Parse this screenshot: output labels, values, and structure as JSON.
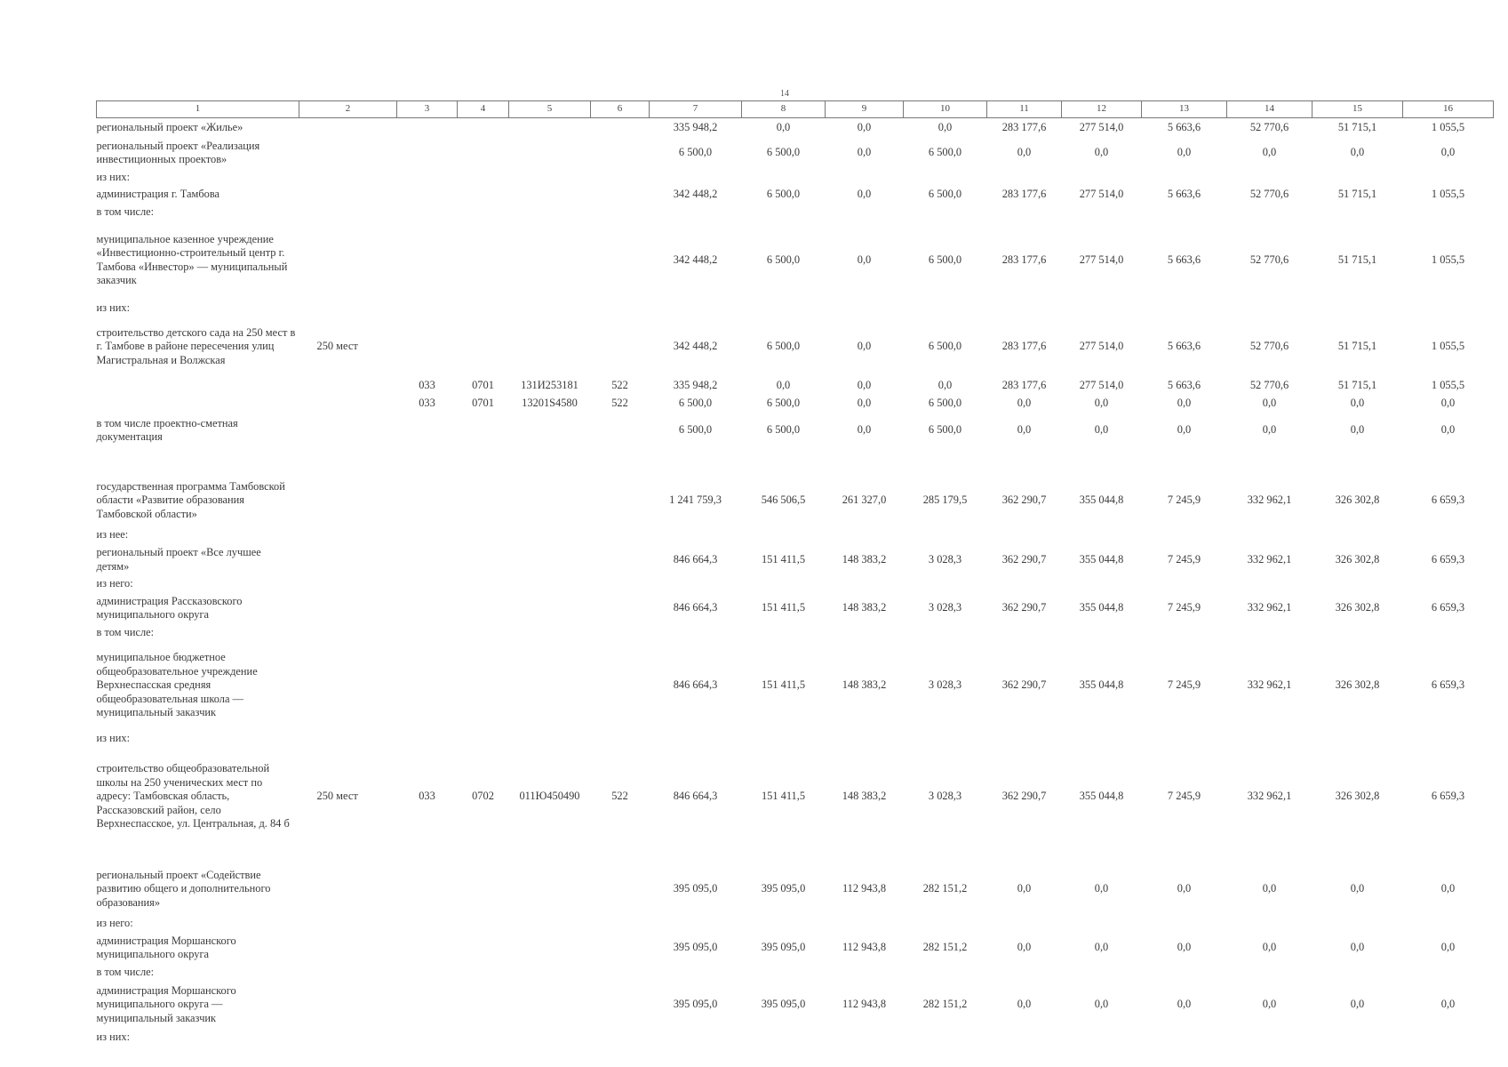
{
  "page_number": "14",
  "columns": [
    "1",
    "2",
    "3",
    "4",
    "5",
    "6",
    "7",
    "8",
    "9",
    "10",
    "11",
    "12",
    "13",
    "14",
    "15",
    "16"
  ],
  "rows": [
    {
      "h": 22,
      "name": "региональный проект «Жилье»",
      "values": [
        "335 948,2",
        "0,0",
        "0,0",
        "0,0",
        "283 177,6",
        "277 514,0",
        "5 663,6",
        "52 770,6",
        "51 715,1",
        "1 055,5"
      ]
    },
    {
      "h": 34,
      "name": "региональный проект «Реализация инвестиционных проектов»",
      "values": [
        "6 500,0",
        "6 500,0",
        "0,0",
        "6 500,0",
        "0,0",
        "0,0",
        "0,0",
        "0,0",
        "0,0",
        "0,0"
      ]
    },
    {
      "h": 18,
      "name": "из них:"
    },
    {
      "h": 20,
      "name": "администрация г. Тамбова",
      "values": [
        "342 448,2",
        "6 500,0",
        "0,0",
        "6 500,0",
        "283 177,6",
        "277 514,0",
        "5 663,6",
        "52 770,6",
        "51 715,1",
        "1 055,5"
      ]
    },
    {
      "h": 18,
      "name": "в том числе:"
    },
    {
      "h": 88,
      "name": "муниципальное казенное учреждение «Инвестиционно-строительный центр г. Тамбова «Инвестор» — муниципальный заказчик",
      "values": [
        "342 448,2",
        "6 500,0",
        "0,0",
        "6 500,0",
        "283 177,6",
        "277 514,0",
        "5 663,6",
        "52 770,6",
        "51 715,1",
        "1 055,5"
      ]
    },
    {
      "h": 18,
      "name": "из них:"
    },
    {
      "h": 68,
      "name": "строительство детского сада на 250 мест в г. Тамбове в районе пересечения улиц Магистральная и Волжская",
      "capacity": "250 мест",
      "values": [
        "342 448,2",
        "6 500,0",
        "0,0",
        "6 500,0",
        "283 177,6",
        "277 514,0",
        "5 663,6",
        "52 770,6",
        "51 715,1",
        "1 055,5"
      ]
    },
    {
      "h": 20,
      "name": "",
      "codes": [
        "033",
        "0701",
        "131И253181",
        "522"
      ],
      "values": [
        "335 948,2",
        "0,0",
        "0,0",
        "0,0",
        "283 177,6",
        "277 514,0",
        "5 663,6",
        "52 770,6",
        "51 715,1",
        "1 055,5"
      ]
    },
    {
      "h": 20,
      "name": "",
      "codes": [
        "033",
        "0701",
        "13201S4580",
        "522"
      ],
      "values": [
        "6 500,0",
        "6 500,0",
        "0,0",
        "6 500,0",
        "0,0",
        "0,0",
        "0,0",
        "0,0",
        "0,0",
        "0,0"
      ]
    },
    {
      "h": 40,
      "name": "в том числе проектно-сметная документация",
      "values": [
        "6 500,0",
        "6 500,0",
        "0,0",
        "6 500,0",
        "0,0",
        "0,0",
        "0,0",
        "0,0",
        "0,0",
        "0,0"
      ]
    },
    {
      "h": 30,
      "name": ""
    },
    {
      "h": 58,
      "name": "государственная программа Тамбовской области «Развитие образования Тамбовской области»",
      "values": [
        "1 241 759,3",
        "546 506,5",
        "261 327,0",
        "285 179,5",
        "362 290,7",
        "355 044,8",
        "7 245,9",
        "332 962,1",
        "326 302,8",
        "6 659,3"
      ]
    },
    {
      "h": 20,
      "name": "из нее:"
    },
    {
      "h": 34,
      "name": "региональный проект «Все лучшее детям»",
      "values": [
        "846 664,3",
        "151 411,5",
        "148 383,2",
        "3 028,3",
        "362 290,7",
        "355 044,8",
        "7 245,9",
        "332 962,1",
        "326 302,8",
        "6 659,3"
      ]
    },
    {
      "h": 18,
      "name": "из него:"
    },
    {
      "h": 34,
      "name": "администрация Рассказовского муниципального округа",
      "values": [
        "846 664,3",
        "151 411,5",
        "148 383,2",
        "3 028,3",
        "362 290,7",
        "355 044,8",
        "7 245,9",
        "332 962,1",
        "326 302,8",
        "6 659,3"
      ]
    },
    {
      "h": 18,
      "name": "в том числе:"
    },
    {
      "h": 100,
      "name": "муниципальное бюджетное общеобразовательное учреждение Верхнеспасская средняя общеобразовательная школа — муниципальный заказчик",
      "values": [
        "846 664,3",
        "151 411,5",
        "148 383,2",
        "3 028,3",
        "362 290,7",
        "355 044,8",
        "7 245,9",
        "332 962,1",
        "326 302,8",
        "6 659,3"
      ]
    },
    {
      "h": 20,
      "name": "из них:"
    },
    {
      "h": 110,
      "name": "строительство общеобразовательной школы на 250 ученических мест по адресу: Тамбовская область, Рассказовский район, село Верхнеспасское, ул. Центральная, д. 84 б",
      "capacity": "250 мест",
      "codes": [
        "033",
        "0702",
        "011Ю450490",
        "522"
      ],
      "values": [
        "846 664,3",
        "151 411,5",
        "148 383,2",
        "3 028,3",
        "362 290,7",
        "355 044,8",
        "7 245,9",
        "332 962,1",
        "326 302,8",
        "6 659,3"
      ]
    },
    {
      "h": 20,
      "name": ""
    },
    {
      "h": 58,
      "name": "региональный проект «Содействие развитию общего и дополнительного образования»",
      "values": [
        "395 095,0",
        "395 095,0",
        "112 943,8",
        "282 151,2",
        "0,0",
        "0,0",
        "0,0",
        "0,0",
        "0,0",
        "0,0"
      ]
    },
    {
      "h": 18,
      "name": "из него:"
    },
    {
      "h": 34,
      "name": "администрация Моршанского муниципального округа",
      "values": [
        "395 095,0",
        "395 095,0",
        "112 943,8",
        "282 151,2",
        "0,0",
        "0,0",
        "0,0",
        "0,0",
        "0,0",
        "0,0"
      ]
    },
    {
      "h": 18,
      "name": "в том числе:"
    },
    {
      "h": 54,
      "name": "администрация Моршанского муниципального округа — муниципальный заказчик",
      "values": [
        "395 095,0",
        "395 095,0",
        "112 943,8",
        "282 151,2",
        "0,0",
        "0,0",
        "0,0",
        "0,0",
        "0,0",
        "0,0"
      ]
    },
    {
      "h": 18,
      "name": "из них:"
    }
  ]
}
